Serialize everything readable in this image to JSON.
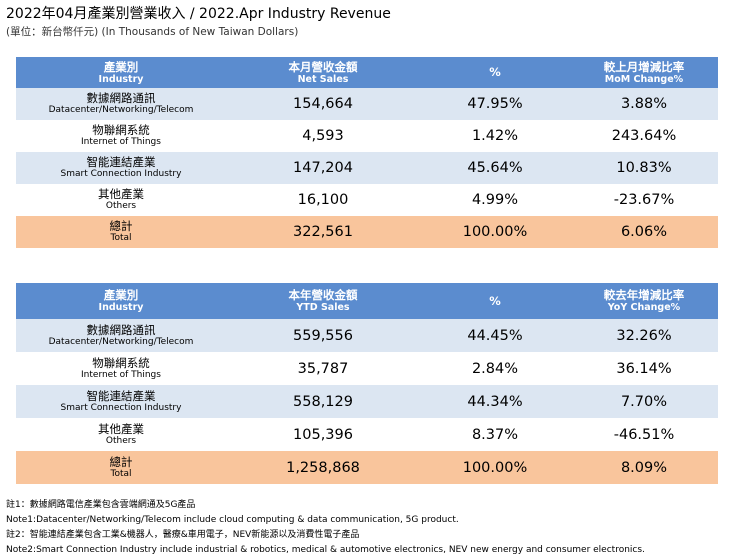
{
  "header": {
    "title": "2022年04月產業別營業收入 / 2022.Apr Industry Revenue",
    "subtitle": "(單位：新台幣仟元) (In Thousands of New Taiwan Dollars)"
  },
  "tables": [
    {
      "columns": [
        {
          "zh": "產業別",
          "en": "Industry"
        },
        {
          "zh": "本月營收金額",
          "en": "Net Sales"
        },
        {
          "zh": "%",
          "en": ""
        },
        {
          "zh": "較上月增減比率",
          "en": "MoM Change%"
        }
      ],
      "rows": [
        {
          "zh": "數據網路通訊",
          "en": "Datacenter/Networking/Telecom",
          "values": [
            "154,664",
            "47.95%",
            "3.88%"
          ]
        },
        {
          "zh": "物聯網系統",
          "en": "Internet of Things",
          "values": [
            "4,593",
            "1.42%",
            "243.64%"
          ]
        },
        {
          "zh": "智能連結產業",
          "en": "Smart Connection Industry",
          "values": [
            "147,204",
            "45.64%",
            "10.83%"
          ]
        },
        {
          "zh": "其他產業",
          "en": "Others",
          "values": [
            "16,100",
            "4.99%",
            "-23.67%"
          ]
        },
        {
          "zh": "總計",
          "en": "Total",
          "values": [
            "322,561",
            "100.00%",
            "6.06%"
          ]
        }
      ]
    },
    {
      "columns": [
        {
          "zh": "產業別",
          "en": "Industry"
        },
        {
          "zh": "本年營收金額",
          "en": "YTD Sales"
        },
        {
          "zh": "%",
          "en": ""
        },
        {
          "zh": "較去年增減比率",
          "en": "YoY Change%"
        }
      ],
      "rows": [
        {
          "zh": "數據網路通訊",
          "en": "Datacenter/Networking/Telecom",
          "values": [
            "559,556",
            "44.45%",
            "32.26%"
          ]
        },
        {
          "zh": "物聯網系統",
          "en": "Internet of Things",
          "values": [
            "35,787",
            "2.84%",
            "36.14%"
          ]
        },
        {
          "zh": "智能連結產業",
          "en": "Smart Connection Industry",
          "values": [
            "558,129",
            "44.34%",
            "7.70%"
          ]
        },
        {
          "zh": "其他產業",
          "en": "Others",
          "values": [
            "105,396",
            "8.37%",
            "-46.51%"
          ]
        },
        {
          "zh": "總計",
          "en": "Total",
          "values": [
            "1,258,868",
            "100.00%",
            "8.09%"
          ]
        }
      ]
    }
  ],
  "notes": [
    "註1：數據網路電信產業包含雲端網通及5G產品",
    "Note1:Datacenter/Networking/Telecom include cloud computing & data communication, 5G product.",
    "註2：智能連結產業包含工業&機器人，醫療&車用電子，NEV新能源以及消費性電子產品",
    "Note2:Smart Connection Industry include industrial & robotics, medical & automotive electronics, NEV new energy and consumer electronics."
  ]
}
